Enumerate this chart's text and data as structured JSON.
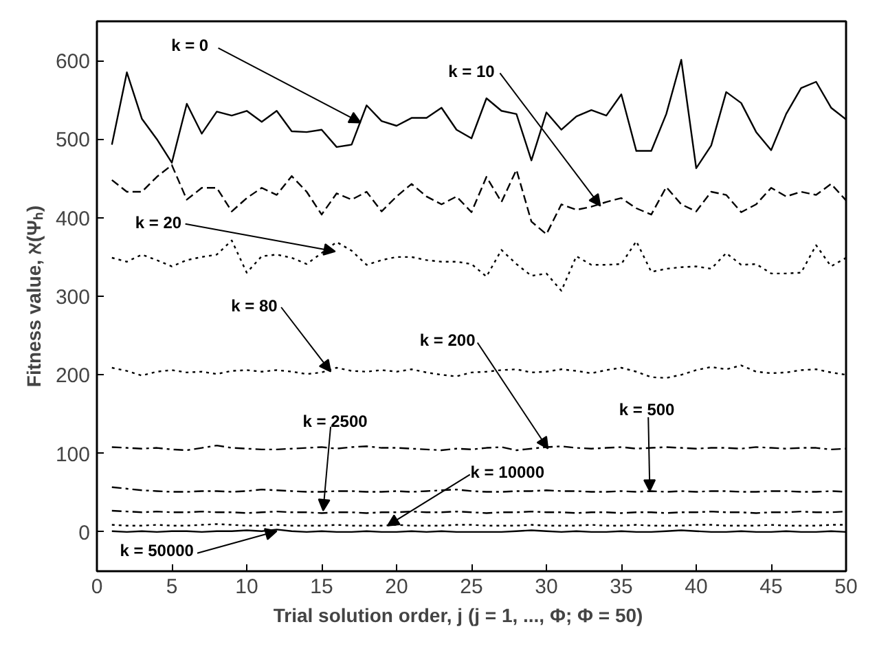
{
  "chart_data": {
    "type": "line",
    "xlabel": "Trial solution order, j      (j = 1, ..., Φ; Φ = 50)",
    "ylabel": "Fitness value, ℵ(Ψₕ)",
    "x": [
      1,
      2,
      3,
      4,
      5,
      6,
      7,
      8,
      9,
      10,
      11,
      12,
      13,
      14,
      15,
      16,
      17,
      18,
      19,
      20,
      21,
      22,
      23,
      24,
      25,
      26,
      27,
      28,
      29,
      30,
      31,
      32,
      33,
      34,
      35,
      36,
      37,
      38,
      39,
      40,
      41,
      42,
      43,
      44,
      45,
      46,
      47,
      48,
      49,
      50
    ],
    "xlim": [
      0,
      50
    ],
    "xticks": [
      0,
      5,
      10,
      15,
      20,
      25,
      30,
      35,
      40,
      45,
      50
    ],
    "ylim": [
      -50,
      650
    ],
    "yticks": [
      0,
      100,
      200,
      300,
      400,
      500,
      600
    ],
    "grid": false,
    "series": [
      {
        "color": "#000000",
        "line_style": "solid",
        "values": [
          493,
          585,
          526,
          500,
          470,
          545,
          507,
          535,
          530,
          536,
          522,
          536,
          510,
          509,
          512,
          490,
          493,
          543,
          523,
          517,
          527,
          527,
          540,
          512,
          501,
          552,
          536,
          532,
          473,
          534,
          512,
          529,
          537,
          530,
          557,
          485,
          485,
          532,
          601,
          463,
          492,
          560,
          546,
          509,
          486,
          532,
          565,
          573,
          540,
          525
        ]
      },
      {
        "color": "#000000",
        "line_style": "dashed",
        "values": [
          448,
          433,
          433,
          452,
          467,
          423,
          438,
          438,
          408,
          425,
          438,
          429,
          453,
          433,
          404,
          431,
          423,
          433,
          408,
          427,
          443,
          427,
          417,
          427,
          407,
          452,
          420,
          461,
          395,
          379,
          417,
          410,
          414,
          420,
          425,
          412,
          404,
          439,
          417,
          408,
          433,
          429,
          407,
          417,
          438,
          427,
          433,
          429,
          443,
          422
        ]
      },
      {
        "color": "#000000",
        "line_style": "dotted",
        "values": [
          349,
          344,
          353,
          346,
          338,
          346,
          350,
          353,
          371,
          330,
          351,
          353,
          349,
          341,
          355,
          369,
          358,
          340,
          346,
          350,
          350,
          346,
          344,
          344,
          341,
          325,
          359,
          341,
          326,
          329,
          307,
          351,
          340,
          340,
          341,
          370,
          331,
          335,
          337,
          338,
          335,
          355,
          340,
          341,
          329,
          329,
          330,
          365,
          338,
          349
        ]
      },
      {
        "color": "#000000",
        "line_style": "dotted",
        "values": [
          209,
          205,
          199,
          204,
          206,
          203,
          204,
          201,
          205,
          206,
          204,
          206,
          204,
          201,
          203,
          209,
          205,
          204,
          206,
          204,
          207,
          203,
          200,
          198,
          203,
          204,
          206,
          207,
          203,
          204,
          207,
          205,
          202,
          206,
          209,
          204,
          197,
          196,
          200,
          206,
          210,
          207,
          212,
          204,
          202,
          203,
          206,
          207,
          203,
          200
        ]
      },
      {
        "color": "#000000",
        "line_style": "dashdot",
        "values": [
          108,
          107,
          106,
          107,
          105,
          104,
          107,
          110,
          107,
          106,
          105,
          105,
          106,
          107,
          108,
          106,
          108,
          109,
          107,
          107,
          106,
          105,
          104,
          106,
          105,
          107,
          108,
          104,
          106,
          108,
          109,
          107,
          106,
          107,
          108,
          106,
          107,
          108,
          107,
          106,
          107,
          107,
          106,
          108,
          107,
          106,
          107,
          107,
          105,
          106
        ]
      },
      {
        "color": "#000000",
        "line_style": "dashdot",
        "values": [
          57,
          55,
          53,
          52,
          51,
          51,
          52,
          52,
          51,
          52,
          54,
          53,
          52,
          51,
          51,
          52,
          52,
          51,
          51,
          52,
          51,
          52,
          53,
          54,
          52,
          51,
          51,
          52,
          52,
          53,
          52,
          52,
          51,
          51,
          52,
          51,
          52,
          51,
          52,
          51,
          52,
          52,
          51,
          51,
          52,
          52,
          51,
          51,
          52,
          51
        ]
      },
      {
        "color": "#000000",
        "line_style": "dashdot",
        "values": [
          27,
          26,
          25,
          26,
          25,
          25,
          26,
          25,
          25,
          24,
          25,
          26,
          25,
          25,
          24,
          25,
          25,
          24,
          25,
          25,
          26,
          25,
          25,
          26,
          25,
          24,
          25,
          25,
          26,
          25,
          25,
          24,
          25,
          25,
          24,
          25,
          25,
          24,
          25,
          25,
          26,
          25,
          25,
          24,
          25,
          25,
          26,
          25,
          25,
          26
        ]
      },
      {
        "color": "#000000",
        "line_style": "dotted",
        "values": [
          9,
          8,
          8,
          9,
          8,
          8,
          9,
          10,
          9,
          8,
          8,
          9,
          8,
          8,
          8,
          9,
          8,
          8,
          8,
          9,
          8,
          8,
          8,
          9,
          9,
          8,
          8,
          8,
          9,
          8,
          8,
          8,
          9,
          8,
          8,
          9,
          8,
          8,
          8,
          9,
          9,
          8,
          8,
          8,
          9,
          8,
          8,
          8,
          9,
          9
        ]
      },
      {
        "color": "#000000",
        "line_style": "solid",
        "values": [
          1,
          0,
          1,
          0,
          1,
          1,
          0,
          1,
          1,
          2,
          1,
          3,
          1,
          0,
          1,
          0,
          0,
          1,
          0,
          0,
          1,
          0,
          1,
          0,
          0,
          0,
          0,
          1,
          2,
          1,
          0,
          1,
          0,
          0,
          1,
          0,
          0,
          1,
          2,
          1,
          0,
          0,
          1,
          0,
          0,
          1,
          0,
          0,
          1,
          0
        ]
      }
    ],
    "annotations": [
      {
        "text": "k = 0",
        "x": 17.6,
        "y": 521
      },
      {
        "text": "k = 10",
        "x": 33.6,
        "y": 415
      },
      {
        "text": "k = 20",
        "x": 15.9,
        "y": 357
      },
      {
        "text": "k = 80",
        "x": 15.6,
        "y": 204
      },
      {
        "text": "k = 200",
        "x": 30.1,
        "y": 106
      },
      {
        "text": "k = 500",
        "x": 36.9,
        "y": 52
      },
      {
        "text": "k = 2500",
        "x": 15.1,
        "y": 27
      },
      {
        "text": "k = 10000",
        "x": 19.4,
        "y": 8
      },
      {
        "text": "k = 50000",
        "x": 12.0,
        "y": 1
      }
    ]
  }
}
